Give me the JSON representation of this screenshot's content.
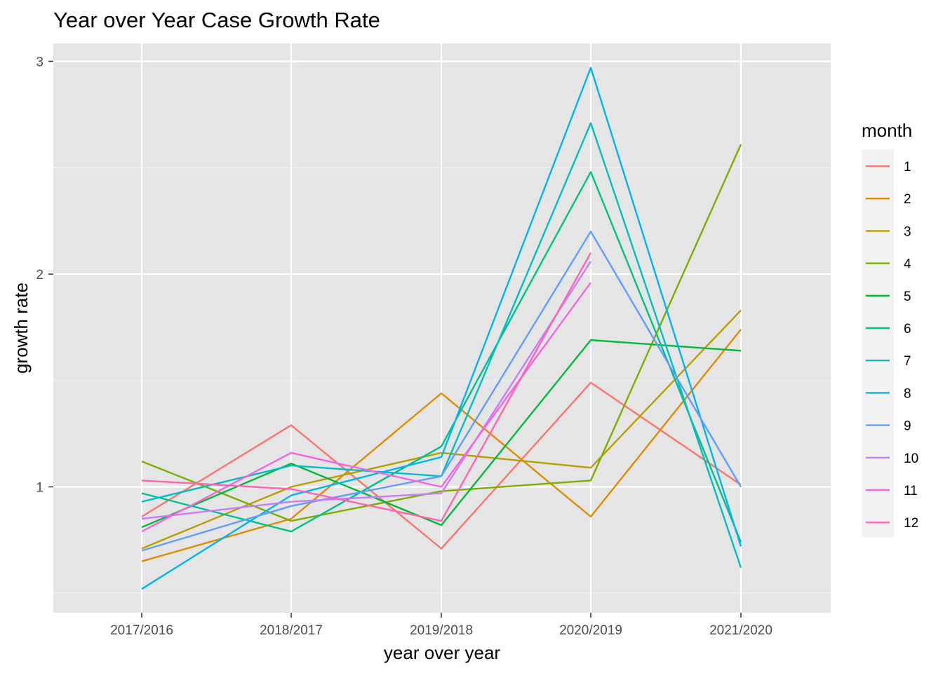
{
  "chart_data": {
    "type": "line",
    "title": "Year over Year Case Growth Rate",
    "xlabel": "year over year",
    "ylabel": "growth rate",
    "categories": [
      "2017/2016",
      "2018/2017",
      "2019/2018",
      "2020/2019",
      "2021/2020"
    ],
    "ylim": [
      0.42,
      3.12
    ],
    "yticks": [
      1,
      2,
      3
    ],
    "grid": true,
    "legend": {
      "title": "month",
      "placement": "right"
    },
    "series": [
      {
        "name": "1",
        "color": "#F8766D",
        "values": [
          0.86,
          1.29,
          0.71,
          1.49,
          1.01
        ]
      },
      {
        "name": "2",
        "color": "#DE8C00",
        "values": [
          0.65,
          0.85,
          1.44,
          0.86,
          1.74
        ]
      },
      {
        "name": "3",
        "color": "#B79F00",
        "values": [
          0.71,
          1.0,
          1.16,
          1.09,
          1.83
        ]
      },
      {
        "name": "4",
        "color": "#7CAE00",
        "values": [
          1.12,
          0.84,
          0.98,
          1.03,
          2.61
        ]
      },
      {
        "name": "5",
        "color": "#00BA38",
        "values": [
          0.81,
          1.11,
          0.82,
          1.69,
          1.64
        ]
      },
      {
        "name": "6",
        "color": "#00C08B",
        "values": [
          0.97,
          0.79,
          1.19,
          2.48,
          0.74
        ]
      },
      {
        "name": "7",
        "color": "#00BFC4",
        "values": [
          0.93,
          1.1,
          1.05,
          2.71,
          0.62
        ]
      },
      {
        "name": "8",
        "color": "#00B4F0",
        "values": [
          0.52,
          0.96,
          1.14,
          2.97,
          0.72
        ]
      },
      {
        "name": "9",
        "color": "#619CFF",
        "values": [
          0.7,
          0.91,
          1.05,
          2.2,
          1.0
        ]
      },
      {
        "name": "10",
        "color": "#C77CFF",
        "values": [
          0.85,
          0.93,
          0.97,
          2.06,
          null
        ]
      },
      {
        "name": "11",
        "color": "#F564E3",
        "values": [
          0.79,
          1.16,
          1.0,
          1.96,
          null
        ]
      },
      {
        "name": "12",
        "color": "#FF64B0",
        "values": [
          1.03,
          0.99,
          0.84,
          2.1,
          null
        ]
      }
    ]
  },
  "colors": {
    "panel_background": "#E5E5E5",
    "grid_line": "#FFFFFF",
    "tick_text": "#4D4D4D"
  }
}
